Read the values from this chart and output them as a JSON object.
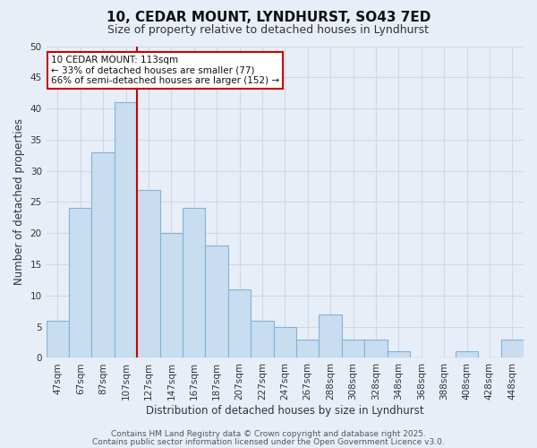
{
  "title": "10, CEDAR MOUNT, LYNDHURST, SO43 7ED",
  "subtitle": "Size of property relative to detached houses in Lyndhurst",
  "xlabel": "Distribution of detached houses by size in Lyndhurst",
  "ylabel": "Number of detached properties",
  "bar_labels": [
    "47sqm",
    "67sqm",
    "87sqm",
    "107sqm",
    "127sqm",
    "147sqm",
    "167sqm",
    "187sqm",
    "207sqm",
    "227sqm",
    "247sqm",
    "267sqm",
    "288sqm",
    "308sqm",
    "328sqm",
    "348sqm",
    "368sqm",
    "388sqm",
    "408sqm",
    "428sqm",
    "448sqm"
  ],
  "bar_values": [
    6,
    24,
    33,
    41,
    27,
    20,
    24,
    18,
    11,
    6,
    5,
    3,
    7,
    3,
    3,
    1,
    0,
    0,
    1,
    0,
    3
  ],
  "bar_color": "#c9ddf0",
  "bar_edge_color": "#7fb3d9",
  "vline_x": 3.5,
  "vline_color": "#cc0000",
  "ylim": [
    0,
    50
  ],
  "yticks": [
    0,
    5,
    10,
    15,
    20,
    25,
    30,
    35,
    40,
    45,
    50
  ],
  "annotation_box_text": "10 CEDAR MOUNT: 113sqm\n← 33% of detached houses are smaller (77)\n66% of semi-detached houses are larger (152) →",
  "annotation_box_color": "#ffffff",
  "annotation_box_edge_color": "#cc0000",
  "footer_line1": "Contains HM Land Registry data © Crown copyright and database right 2025.",
  "footer_line2": "Contains public sector information licensed under the Open Government Licence v3.0.",
  "background_color": "#e8eef8",
  "grid_color": "#d0d8e8",
  "title_fontsize": 11,
  "subtitle_fontsize": 9,
  "axis_label_fontsize": 8.5,
  "tick_fontsize": 7.5,
  "annotation_fontsize": 7.5,
  "footer_fontsize": 6.5
}
